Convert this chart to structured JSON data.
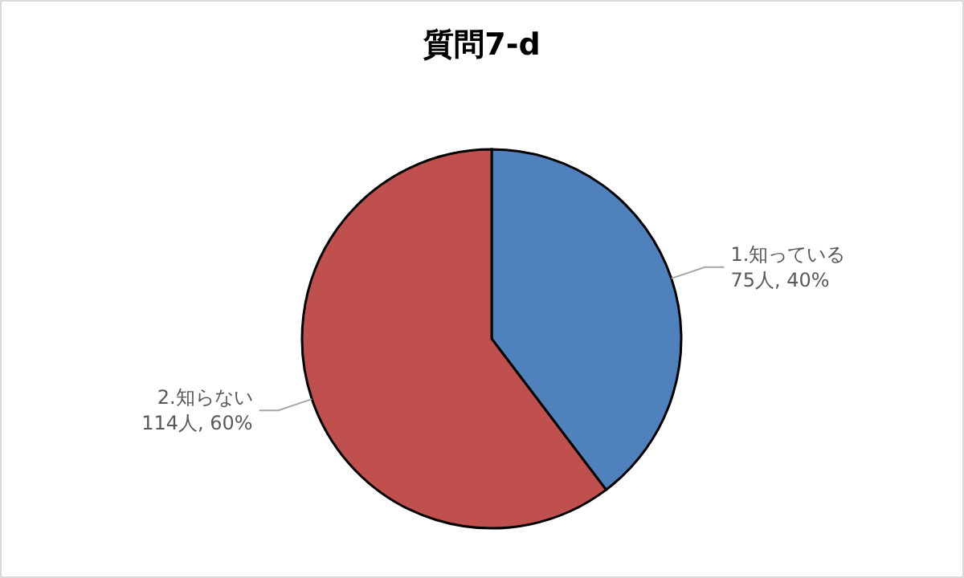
{
  "chart_data": {
    "type": "pie",
    "title": "質問7-d",
    "categories": [
      "1.知っている",
      "2.知らない"
    ],
    "values": [
      75,
      114
    ],
    "value_labels": [
      "75人, 40%",
      "114人, 60%"
    ],
    "colors": [
      "#4f81bd",
      "#c0504d"
    ]
  }
}
